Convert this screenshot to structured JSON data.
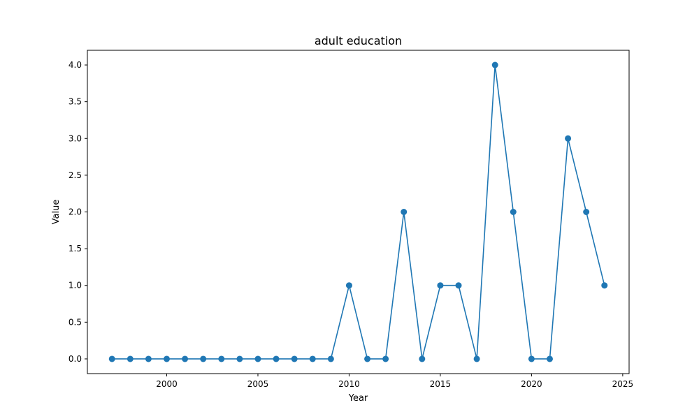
{
  "chart_data": {
    "type": "line",
    "title": "adult education",
    "xlabel": "Year",
    "ylabel": "Value",
    "x": [
      1997,
      1998,
      1999,
      2000,
      2001,
      2002,
      2003,
      2004,
      2005,
      2006,
      2007,
      2008,
      2009,
      2010,
      2011,
      2012,
      2013,
      2014,
      2015,
      2016,
      2017,
      2018,
      2019,
      2020,
      2021,
      2022,
      2023,
      2024
    ],
    "series": [
      {
        "values": [
          0,
          0,
          0,
          0,
          0,
          0,
          0,
          0,
          0,
          0,
          0,
          0,
          0,
          1,
          0,
          0,
          2,
          0,
          1,
          1,
          0,
          4,
          2,
          0,
          0,
          3,
          2,
          1
        ]
      }
    ],
    "xlim": [
      1995.65,
      2025.35
    ],
    "ylim": [
      -0.2,
      4.2
    ],
    "xticks": [
      "2000",
      "2005",
      "2010",
      "2015",
      "2020",
      "2025"
    ],
    "yticks": [
      "0.0",
      "0.5",
      "1.0",
      "1.5",
      "2.0",
      "2.5",
      "3.0",
      "3.5",
      "4.0"
    ],
    "grid": false,
    "line_color": "#1f77b4",
    "marker": "circle"
  }
}
